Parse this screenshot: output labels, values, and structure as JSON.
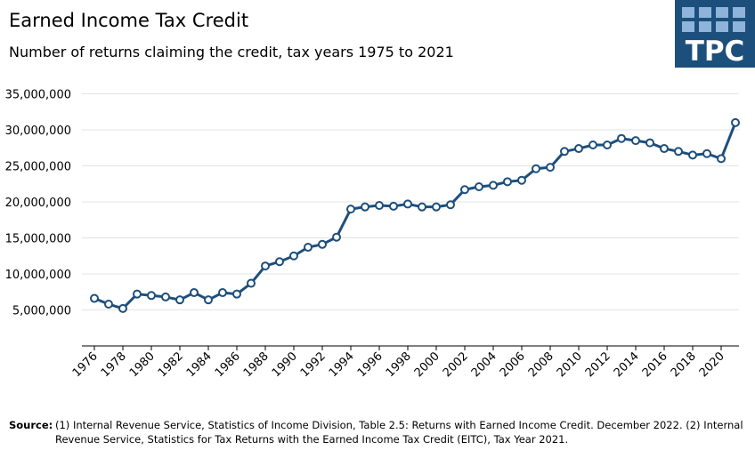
{
  "chart_data": {
    "type": "line",
    "title": "Earned Income Tax Credit",
    "subtitle": "Number of returns claiming the credit, tax years 1975 to 2021",
    "logo": "TPC",
    "source_label": "Source:",
    "source_text": "(1) Internal Revenue Service, Statistics of Income Division, Table 2.5: Returns with Earned Income Credit. December 2022. (2) Internal Revenue Service, Statistics for Tax Returns with the Earned Income Tax Credit (EITC), Tax Year 2021.",
    "x": [
      1976,
      1977,
      1978,
      1979,
      1980,
      1981,
      1982,
      1983,
      1984,
      1985,
      1986,
      1987,
      1988,
      1989,
      1990,
      1991,
      1992,
      1993,
      1994,
      1995,
      1996,
      1997,
      1998,
      1999,
      2000,
      2001,
      2002,
      2003,
      2004,
      2005,
      2006,
      2007,
      2008,
      2009,
      2010,
      2011,
      2012,
      2013,
      2014,
      2015,
      2016,
      2017,
      2018,
      2019,
      2020,
      2021
    ],
    "series": [
      {
        "color": "#1d4f7c",
        "values": [
          6600000,
          5800000,
          5200000,
          7200000,
          7000000,
          6800000,
          6400000,
          7400000,
          6400000,
          7400000,
          7200000,
          8700000,
          11100000,
          11700000,
          12500000,
          13700000,
          14100000,
          15100000,
          19000000,
          19300000,
          19500000,
          19400000,
          19700000,
          19300000,
          19300000,
          19600000,
          21700000,
          22100000,
          22300000,
          22800000,
          23000000,
          24600000,
          24800000,
          27000000,
          27400000,
          27900000,
          27900000,
          28800000,
          28500000,
          28200000,
          27400000,
          27000000,
          26500000,
          26700000,
          26000000,
          31000000
        ]
      }
    ],
    "xlim": [
      1976,
      2021
    ],
    "xticks": [
      1976,
      1978,
      1980,
      1982,
      1984,
      1986,
      1988,
      1990,
      1992,
      1994,
      1996,
      1998,
      2000,
      2002,
      2004,
      2006,
      2008,
      2010,
      2012,
      2014,
      2016,
      2018,
      2020
    ],
    "ylim": [
      0,
      35000000
    ],
    "yticks": [
      {
        "value": 5000000,
        "label": "5,000,000"
      },
      {
        "value": 10000000,
        "label": "10,000,000"
      },
      {
        "value": 15000000,
        "label": "15,000,000"
      },
      {
        "value": 20000000,
        "label": "20,000,000"
      },
      {
        "value": 25000000,
        "label": "25,000,000"
      },
      {
        "value": 30000000,
        "label": "30,000,000"
      },
      {
        "value": 35000000,
        "label": "35,000,000"
      }
    ],
    "grid": true
  }
}
